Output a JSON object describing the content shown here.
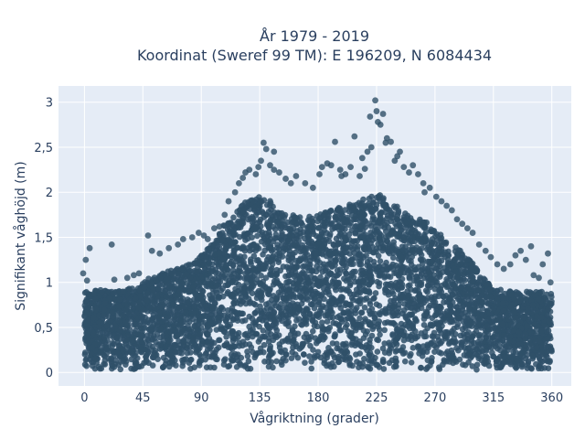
{
  "chart_data": {
    "type": "scatter",
    "title_line1": "År 1979 - 2019",
    "title_line2": "Koordinat (Sweref 99 TM): E 196209, N 6084434",
    "xlabel": "Vågriktning (grader)",
    "ylabel": "Signifikant våghöjd (m)",
    "xlim": [
      -20,
      375
    ],
    "ylim": [
      -0.15,
      3.18
    ],
    "xticks": [
      0,
      45,
      90,
      135,
      180,
      225,
      270,
      315,
      360
    ],
    "xtick_labels": [
      "0",
      "45",
      "90",
      "135",
      "180",
      "225",
      "270",
      "315",
      "360"
    ],
    "yticks": [
      0,
      0.5,
      1,
      1.5,
      2,
      2.5,
      3
    ],
    "ytick_labels": [
      "0",
      "0,5",
      "1",
      "1,5",
      "2",
      "2,5",
      "3"
    ],
    "grid": true,
    "marker_color": "#2f5068",
    "background_color": "#e5ecf6",
    "envelope": {
      "x": [
        0,
        10,
        20,
        30,
        40,
        45,
        50,
        60,
        70,
        80,
        90,
        100,
        110,
        120,
        130,
        135,
        140,
        150,
        160,
        170,
        180,
        190,
        200,
        210,
        220,
        225,
        230,
        240,
        250,
        260,
        270,
        280,
        290,
        300,
        310,
        315,
        320,
        330,
        340,
        350,
        360
      ],
      "y": [
        0.9,
        0.92,
        0.9,
        0.93,
        0.95,
        1.0,
        1.05,
        1.1,
        1.15,
        1.2,
        1.3,
        1.45,
        1.7,
        1.85,
        1.95,
        2.0,
        1.95,
        1.8,
        1.75,
        1.72,
        1.75,
        1.8,
        1.85,
        1.9,
        1.95,
        2.0,
        1.95,
        1.85,
        1.75,
        1.7,
        1.6,
        1.45,
        1.35,
        1.2,
        1.0,
        0.95,
        0.92,
        0.9,
        0.9,
        0.9,
        0.88
      ]
    },
    "points": [
      [
        1,
        1.25
      ],
      [
        4,
        1.38
      ],
      [
        -1,
        1.1
      ],
      [
        2,
        1.02
      ],
      [
        21,
        1.42
      ],
      [
        23,
        1.03
      ],
      [
        33,
        1.05
      ],
      [
        38,
        1.08
      ],
      [
        42,
        1.1
      ],
      [
        49,
        1.52
      ],
      [
        52,
        1.35
      ],
      [
        58,
        1.32
      ],
      [
        65,
        1.38
      ],
      [
        72,
        1.42
      ],
      [
        76,
        1.48
      ],
      [
        83,
        1.5
      ],
      [
        88,
        1.55
      ],
      [
        92,
        1.52
      ],
      [
        95,
        1.48
      ],
      [
        100,
        1.6
      ],
      [
        104,
        1.62
      ],
      [
        111,
        1.9
      ],
      [
        116,
        2.0
      ],
      [
        119,
        2.1
      ],
      [
        122,
        2.16
      ],
      [
        124,
        2.22
      ],
      [
        127,
        2.25
      ],
      [
        132,
        2.2
      ],
      [
        134,
        2.28
      ],
      [
        136,
        2.35
      ],
      [
        138,
        2.55
      ],
      [
        140,
        2.48
      ],
      [
        143,
        2.3
      ],
      [
        146,
        2.25
      ],
      [
        150,
        2.22
      ],
      [
        155,
        2.15
      ],
      [
        159,
        2.1
      ],
      [
        163,
        2.18
      ],
      [
        170,
        2.1
      ],
      [
        176,
        2.05
      ],
      [
        181,
        2.2
      ],
      [
        183,
        2.28
      ],
      [
        187,
        2.32
      ],
      [
        190,
        2.3
      ],
      [
        193,
        2.56
      ],
      [
        197,
        2.25
      ],
      [
        201,
        2.2
      ],
      [
        205,
        2.28
      ],
      [
        208,
        2.62
      ],
      [
        212,
        2.18
      ],
      [
        214,
        2.38
      ],
      [
        216,
        2.26
      ],
      [
        218,
        2.45
      ],
      [
        220,
        2.84
      ],
      [
        221,
        2.5
      ],
      [
        224,
        3.02
      ],
      [
        225,
        2.9
      ],
      [
        226,
        2.78
      ],
      [
        228,
        2.75
      ],
      [
        230,
        2.87
      ],
      [
        233,
        2.6
      ],
      [
        236,
        2.56
      ],
      [
        239,
        2.35
      ],
      [
        241,
        2.4
      ],
      [
        243,
        2.45
      ],
      [
        246,
        2.28
      ],
      [
        250,
        2.22
      ],
      [
        253,
        2.3
      ],
      [
        257,
        2.2
      ],
      [
        261,
        2.1
      ],
      [
        266,
        2.05
      ],
      [
        271,
        1.95
      ],
      [
        275,
        1.9
      ],
      [
        279,
        1.85
      ],
      [
        283,
        1.8
      ],
      [
        287,
        1.7
      ],
      [
        291,
        1.65
      ],
      [
        295,
        1.6
      ],
      [
        299,
        1.55
      ],
      [
        304,
        1.42
      ],
      [
        309,
        1.35
      ],
      [
        313,
        1.28
      ],
      [
        318,
        1.2
      ],
      [
        323,
        1.15
      ],
      [
        328,
        1.2
      ],
      [
        332,
        1.3
      ],
      [
        336,
        1.35
      ],
      [
        340,
        1.25
      ],
      [
        344,
        1.4
      ],
      [
        346,
        1.08
      ],
      [
        350,
        1.05
      ],
      [
        353,
        1.2
      ],
      [
        357,
        1.32
      ],
      [
        359,
        1.0
      ],
      [
        146,
        2.45
      ],
      [
        232,
        2.55
      ],
      [
        262,
        2.0
      ],
      [
        198,
        2.18
      ],
      [
        108,
        1.75
      ]
    ]
  }
}
